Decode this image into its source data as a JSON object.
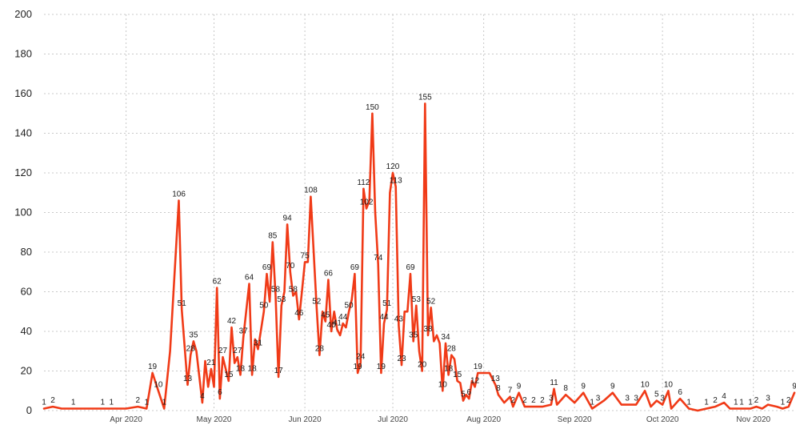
{
  "chart_data": {
    "type": "line",
    "title": "",
    "xlabel": "",
    "ylabel": "",
    "ylim": [
      0,
      200
    ],
    "grid": true,
    "legend": "none",
    "line_color": "#f03a17",
    "yticks": [
      0,
      20,
      40,
      60,
      80,
      100,
      120,
      140,
      160,
      180,
      200
    ],
    "xticks": [
      {
        "label": "Apr 2020",
        "date": "2020-04-01"
      },
      {
        "label": "May 2020",
        "date": "2020-05-01"
      },
      {
        "label": "Jun 2020",
        "date": "2020-06-01"
      },
      {
        "label": "Jul 2020",
        "date": "2020-07-01"
      },
      {
        "label": "Aug 2020",
        "date": "2020-08-01"
      },
      {
        "label": "Sep 2020",
        "date": "2020-09-01"
      },
      {
        "label": "Oct 2020",
        "date": "2020-10-01"
      },
      {
        "label": "Nov 2020",
        "date": "2020-11-01"
      }
    ],
    "x_start": "2020-03-04",
    "x_end": "2020-11-15",
    "series": [
      {
        "values": [
          [
            "2020-03-04",
            1,
            true
          ],
          [
            "2020-03-07",
            2,
            true
          ],
          [
            "2020-03-10",
            1,
            false
          ],
          [
            "2020-03-14",
            1,
            true
          ],
          [
            "2020-03-19",
            1,
            false
          ],
          [
            "2020-03-24",
            1,
            true
          ],
          [
            "2020-03-27",
            1,
            true
          ],
          [
            "2020-04-01",
            1,
            false
          ],
          [
            "2020-04-05",
            2,
            true
          ],
          [
            "2020-04-08",
            1,
            true
          ],
          [
            "2020-04-10",
            19,
            true
          ],
          [
            "2020-04-12",
            10,
            true
          ],
          [
            "2020-04-14",
            1,
            true
          ],
          [
            "2020-04-16",
            30,
            false
          ],
          [
            "2020-04-19",
            106,
            true
          ],
          [
            "2020-04-20",
            51,
            true
          ],
          [
            "2020-04-22",
            13,
            true
          ],
          [
            "2020-04-23",
            28,
            true
          ],
          [
            "2020-04-24",
            35,
            true
          ],
          [
            "2020-04-25",
            30,
            false
          ],
          [
            "2020-04-27",
            4,
            true
          ],
          [
            "2020-04-28",
            25,
            false
          ],
          [
            "2020-04-29",
            12,
            false
          ],
          [
            "2020-04-30",
            21,
            true
          ],
          [
            "2020-05-01",
            12,
            false
          ],
          [
            "2020-05-02",
            62,
            true
          ],
          [
            "2020-05-03",
            6,
            true
          ],
          [
            "2020-05-04",
            27,
            true
          ],
          [
            "2020-05-06",
            15,
            true
          ],
          [
            "2020-05-07",
            42,
            true
          ],
          [
            "2020-05-08",
            24,
            false
          ],
          [
            "2020-05-09",
            27,
            true
          ],
          [
            "2020-05-10",
            18,
            true
          ],
          [
            "2020-05-11",
            37,
            true
          ],
          [
            "2020-05-13",
            64,
            true
          ],
          [
            "2020-05-14",
            18,
            true
          ],
          [
            "2020-05-15",
            36,
            false
          ],
          [
            "2020-05-16",
            31,
            true
          ],
          [
            "2020-05-18",
            50,
            true
          ],
          [
            "2020-05-19",
            69,
            true
          ],
          [
            "2020-05-20",
            55,
            false
          ],
          [
            "2020-05-21",
            85,
            true
          ],
          [
            "2020-05-22",
            58,
            true
          ],
          [
            "2020-05-23",
            17,
            true
          ],
          [
            "2020-05-24",
            53,
            true
          ],
          [
            "2020-05-25",
            60,
            false
          ],
          [
            "2020-05-26",
            94,
            true
          ],
          [
            "2020-05-27",
            70,
            true
          ],
          [
            "2020-05-28",
            58,
            true
          ],
          [
            "2020-05-29",
            60,
            false
          ],
          [
            "2020-05-30",
            46,
            true
          ],
          [
            "2020-05-31",
            60,
            false
          ],
          [
            "2020-06-01",
            75,
            true
          ],
          [
            "2020-06-02",
            75,
            false
          ],
          [
            "2020-06-03",
            108,
            true
          ],
          [
            "2020-06-04",
            80,
            false
          ],
          [
            "2020-06-05",
            52,
            true
          ],
          [
            "2020-06-06",
            28,
            true
          ],
          [
            "2020-06-07",
            50,
            false
          ],
          [
            "2020-06-08",
            45,
            true
          ],
          [
            "2020-06-09",
            66,
            true
          ],
          [
            "2020-06-10",
            40,
            true
          ],
          [
            "2020-06-11",
            50,
            false
          ],
          [
            "2020-06-12",
            41,
            true
          ],
          [
            "2020-06-13",
            38,
            false
          ],
          [
            "2020-06-14",
            44,
            true
          ],
          [
            "2020-06-15",
            42,
            false
          ],
          [
            "2020-06-16",
            50,
            true
          ],
          [
            "2020-06-17",
            56,
            false
          ],
          [
            "2020-06-18",
            69,
            true
          ],
          [
            "2020-06-19",
            19,
            true
          ],
          [
            "2020-06-20",
            24,
            true
          ],
          [
            "2020-06-21",
            112,
            true
          ],
          [
            "2020-06-22",
            102,
            true
          ],
          [
            "2020-06-23",
            106,
            false
          ],
          [
            "2020-06-24",
            150,
            true
          ],
          [
            "2020-06-25",
            100,
            false
          ],
          [
            "2020-06-26",
            74,
            true
          ],
          [
            "2020-06-27",
            19,
            true
          ],
          [
            "2020-06-28",
            44,
            true
          ],
          [
            "2020-06-29",
            51,
            true
          ],
          [
            "2020-06-30",
            110,
            false
          ],
          [
            "2020-07-01",
            120,
            true
          ],
          [
            "2020-07-02",
            113,
            true
          ],
          [
            "2020-07-03",
            43,
            true
          ],
          [
            "2020-07-04",
            23,
            true
          ],
          [
            "2020-07-05",
            50,
            false
          ],
          [
            "2020-07-06",
            50,
            false
          ],
          [
            "2020-07-07",
            69,
            true
          ],
          [
            "2020-07-08",
            35,
            true
          ],
          [
            "2020-07-09",
            53,
            true
          ],
          [
            "2020-07-10",
            30,
            false
          ],
          [
            "2020-07-11",
            20,
            true
          ],
          [
            "2020-07-12",
            155,
            true
          ],
          [
            "2020-07-13",
            38,
            true
          ],
          [
            "2020-07-14",
            52,
            true
          ],
          [
            "2020-07-15",
            35,
            false
          ],
          [
            "2020-07-16",
            38,
            false
          ],
          [
            "2020-07-17",
            34,
            false
          ],
          [
            "2020-07-18",
            10,
            true
          ],
          [
            "2020-07-19",
            34,
            true
          ],
          [
            "2020-07-20",
            18,
            true
          ],
          [
            "2020-07-21",
            28,
            true
          ],
          [
            "2020-07-22",
            26,
            false
          ],
          [
            "2020-07-23",
            15,
            true
          ],
          [
            "2020-07-24",
            14,
            false
          ],
          [
            "2020-07-25",
            5,
            true
          ],
          [
            "2020-07-26",
            8,
            false
          ],
          [
            "2020-07-27",
            6,
            true
          ],
          [
            "2020-07-28",
            15,
            false
          ],
          [
            "2020-07-29",
            12,
            true
          ],
          [
            "2020-07-30",
            19,
            true
          ],
          [
            "2020-08-01",
            19,
            false
          ],
          [
            "2020-08-03",
            19,
            false
          ],
          [
            "2020-08-05",
            13,
            true
          ],
          [
            "2020-08-06",
            8,
            true
          ],
          [
            "2020-08-08",
            4,
            false
          ],
          [
            "2020-08-10",
            7,
            true
          ],
          [
            "2020-08-11",
            2,
            true
          ],
          [
            "2020-08-13",
            9,
            true
          ],
          [
            "2020-08-15",
            2,
            true
          ],
          [
            "2020-08-18",
            2,
            true
          ],
          [
            "2020-08-21",
            2,
            true
          ],
          [
            "2020-08-24",
            3,
            true
          ],
          [
            "2020-08-25",
            11,
            true
          ],
          [
            "2020-08-26",
            3,
            false
          ],
          [
            "2020-08-29",
            8,
            true
          ],
          [
            "2020-09-01",
            4,
            false
          ],
          [
            "2020-09-04",
            9,
            true
          ],
          [
            "2020-09-07",
            1,
            true
          ],
          [
            "2020-09-09",
            3,
            true
          ],
          [
            "2020-09-11",
            5,
            false
          ],
          [
            "2020-09-14",
            9,
            true
          ],
          [
            "2020-09-17",
            3,
            false
          ],
          [
            "2020-09-19",
            3,
            true
          ],
          [
            "2020-09-22",
            3,
            true
          ],
          [
            "2020-09-25",
            10,
            true
          ],
          [
            "2020-09-27",
            2,
            false
          ],
          [
            "2020-09-29",
            5,
            true
          ],
          [
            "2020-10-01",
            3,
            true
          ],
          [
            "2020-10-03",
            10,
            true
          ],
          [
            "2020-10-04",
            1,
            false
          ],
          [
            "2020-10-07",
            6,
            true
          ],
          [
            "2020-10-10",
            1,
            true
          ],
          [
            "2020-10-13",
            0,
            false
          ],
          [
            "2020-10-16",
            1,
            true
          ],
          [
            "2020-10-19",
            2,
            true
          ],
          [
            "2020-10-22",
            4,
            true
          ],
          [
            "2020-10-24",
            1,
            false
          ],
          [
            "2020-10-26",
            1,
            true
          ],
          [
            "2020-10-28",
            1,
            true
          ],
          [
            "2020-10-31",
            1,
            true
          ],
          [
            "2020-11-02",
            2,
            true
          ],
          [
            "2020-11-04",
            1,
            false
          ],
          [
            "2020-11-06",
            3,
            true
          ],
          [
            "2020-11-09",
            2,
            false
          ],
          [
            "2020-11-11",
            1,
            true
          ],
          [
            "2020-11-13",
            2,
            true
          ],
          [
            "2020-11-15",
            9,
            true
          ]
        ]
      }
    ]
  }
}
